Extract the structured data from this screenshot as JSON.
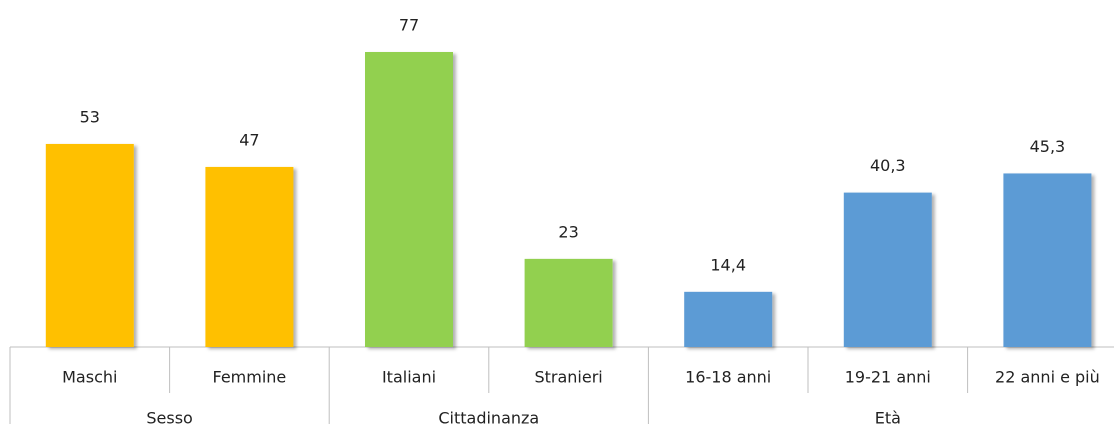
{
  "chart_data": {
    "type": "bar",
    "groups": [
      {
        "label": "Sesso",
        "color": "#ffc000",
        "categories": [
          "Maschi",
          "Femmine"
        ],
        "values": [
          53,
          47
        ]
      },
      {
        "label": "Cittadinanza",
        "color": "#92d050",
        "categories": [
          "Italiani",
          "Stranieri"
        ],
        "values": [
          77,
          23
        ]
      },
      {
        "label": "Età",
        "color": "#5b9bd5",
        "categories": [
          "16-18 anni",
          "19-21 anni",
          "22 anni e più"
        ],
        "values": [
          14.4,
          40.3,
          45.3
        ],
        "value_labels": [
          "14,4",
          "40,3",
          "45,3"
        ]
      }
    ]
  }
}
